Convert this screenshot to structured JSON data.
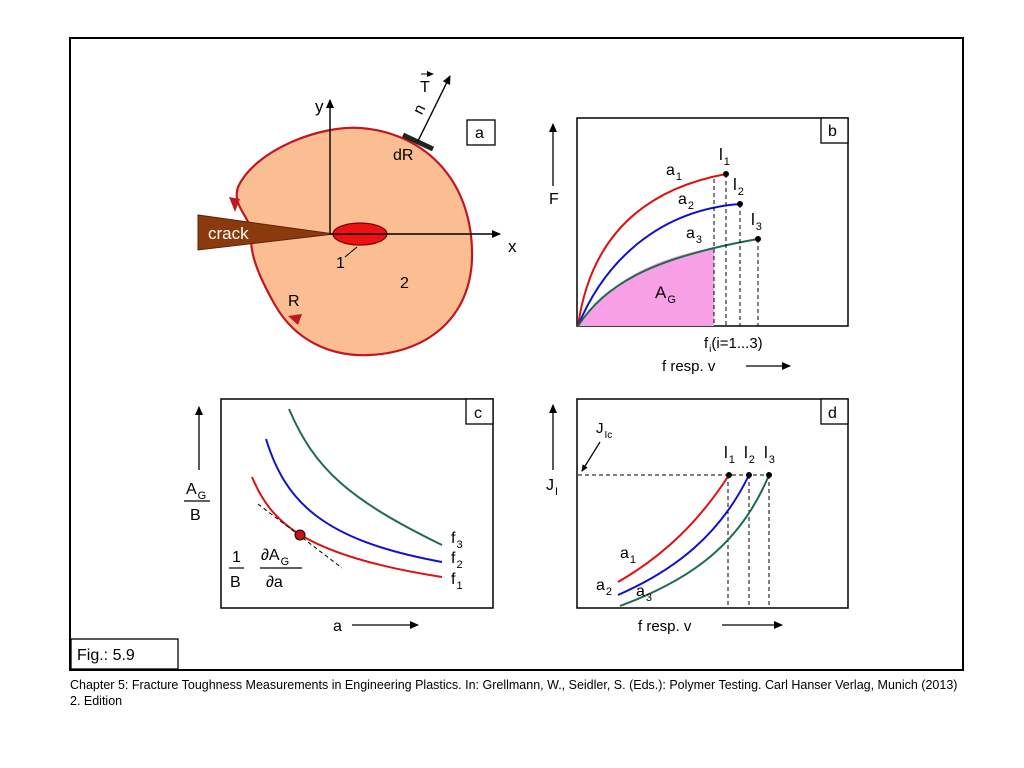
{
  "figure_label": "Fig.: 5.9",
  "caption": "Chapter 5: Fracture Toughness Measurements in Engineering Plastics. In: Grellmann, W., Seidler, S. (Eds.): Polymer Testing. Carl Hanser Verlag, Munich (2013) 2. Edition",
  "panel_a": {
    "tag": "a",
    "y_axis": "y",
    "x_axis": "x",
    "vector_T": "T",
    "normal_n": "n",
    "element_dR": "dR",
    "crack_label": "crack",
    "region_1": "1",
    "region_2": "2",
    "contour_R": "R",
    "colors": {
      "region": "#fbbd92",
      "contour": "#c01820",
      "crack": "#8b3a0e",
      "tip": "#ee1111"
    }
  },
  "panel_b": {
    "tag": "b",
    "ylabel": "F",
    "curve_labels": [
      {
        "main": "a",
        "sub": "1"
      },
      {
        "main": "a",
        "sub": "2"
      },
      {
        "main": "a",
        "sub": "3"
      }
    ],
    "point_labels": [
      {
        "main": "l",
        "sub": "1"
      },
      {
        "main": "l",
        "sub": "2"
      },
      {
        "main": "l",
        "sub": "3"
      }
    ],
    "area": {
      "main": "A",
      "sub": "G"
    },
    "f_label": {
      "main": "f",
      "sub": "i",
      "rest": "(i=1...3)"
    },
    "xlabel": "f  resp. v",
    "colors": {
      "a1": "#dd1111",
      "a2": "#1111cc",
      "a3": "#1f6b4d",
      "area": "#f7a0e6"
    }
  },
  "panel_c": {
    "tag": "c",
    "ylabel": {
      "num_main": "A",
      "num_sub": "G",
      "den": "B"
    },
    "derivative": {
      "one": "1",
      "B": "B",
      "partial_num": "∂A",
      "partial_sub": "G",
      "partial_den": "∂a"
    },
    "curve_labels": [
      {
        "main": "f",
        "sub": "3"
      },
      {
        "main": "f",
        "sub": "2"
      },
      {
        "main": "f",
        "sub": "1"
      }
    ],
    "xlabel": "a"
  },
  "panel_d": {
    "tag": "d",
    "ylabel": {
      "main": "J",
      "sub": "I"
    },
    "jic": {
      "main": "J",
      "sub": "Ic"
    },
    "point_labels": [
      {
        "main": "l",
        "sub": "1"
      },
      {
        "main": "l",
        "sub": "2"
      },
      {
        "main": "l",
        "sub": "3"
      }
    ],
    "curve_labels": [
      {
        "main": "a",
        "sub": "1"
      },
      {
        "main": "a",
        "sub": "2"
      },
      {
        "main": "a",
        "sub": "3"
      }
    ],
    "xlabel": "f  resp. v"
  }
}
